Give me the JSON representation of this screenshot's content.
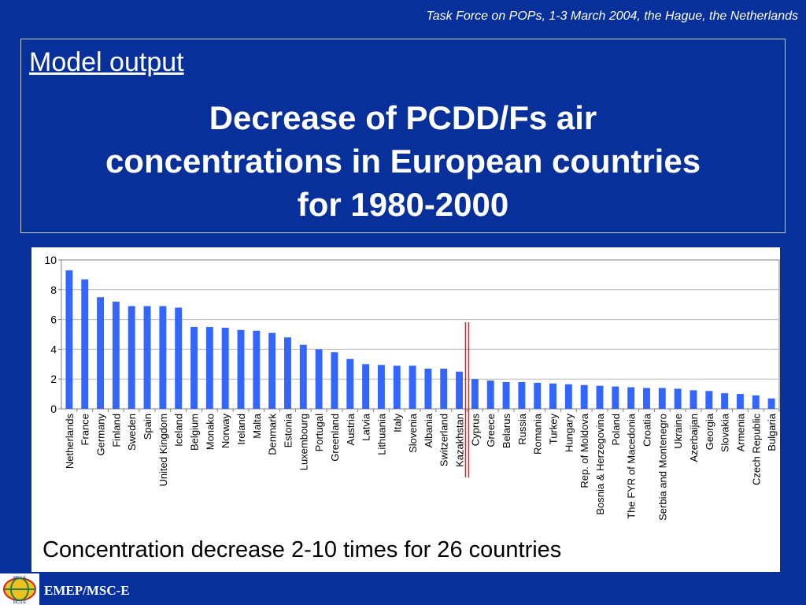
{
  "header": {
    "note": "Task Force on POPs, 1-3 March 2004, the Hague, the Netherlands"
  },
  "title_box": {
    "section_label": "Model output",
    "title_lines": [
      "Decrease of PCDD/Fs air",
      "concentrations in European countries",
      "for 1980-2000"
    ]
  },
  "caption": "Concentration decrease 2-10 times for 26 countries",
  "footer": {
    "label": "EMEP/MSC-E",
    "logo_text_top": "MSC-E",
    "logo_text_bottom": "MCЦ-Е"
  },
  "colors": {
    "background": "#07309a",
    "bar": "#3366ff",
    "divider": "#e02020"
  },
  "chart_data": {
    "type": "bar",
    "categories": [
      "Netherlands",
      "France",
      "Germany",
      "Finland",
      "Sweden",
      "Spain",
      "United Kingdom",
      "Iceland",
      "Belgium",
      "Monako",
      "Norway",
      "Ireland",
      "Malta",
      "Denmark",
      "Estonia",
      "Luxembourg",
      "Portugal",
      "Greenland",
      "Austria",
      "Latvia",
      "Lithuania",
      "Italy",
      "Slovenia",
      "Albania",
      "Switzerland",
      "Kazakhstan",
      "Cyprus",
      "Greece",
      "Belarus",
      "Russia",
      "Romania",
      "Turkey",
      "Hungary",
      "Rep. of Moldova",
      "Bosnia & Herzegovina",
      "Poland",
      "The FYR of Macedonia",
      "Croatia",
      "Serbia and Montenegro",
      "Ukraine",
      "Azerbaijan",
      "Georgia",
      "Slovakia",
      "Armenia",
      "Czech Republic",
      "Bulgaria"
    ],
    "values": [
      9.3,
      8.7,
      7.5,
      7.2,
      6.9,
      6.9,
      6.9,
      6.8,
      5.5,
      5.5,
      5.45,
      5.3,
      5.25,
      5.1,
      4.8,
      4.3,
      4.0,
      3.8,
      3.35,
      3.0,
      2.95,
      2.9,
      2.9,
      2.7,
      2.7,
      2.5,
      2.0,
      1.9,
      1.8,
      1.8,
      1.75,
      1.7,
      1.65,
      1.6,
      1.55,
      1.5,
      1.45,
      1.4,
      1.4,
      1.35,
      1.25,
      1.2,
      1.05,
      1.0,
      0.9,
      0.7
    ],
    "title": "",
    "xlabel": "",
    "ylabel": "",
    "ylim": [
      0,
      10
    ],
    "yticks": [
      "0",
      "2",
      "4",
      "6",
      "8",
      "10"
    ],
    "grid": true,
    "divider_after_index": 25
  }
}
